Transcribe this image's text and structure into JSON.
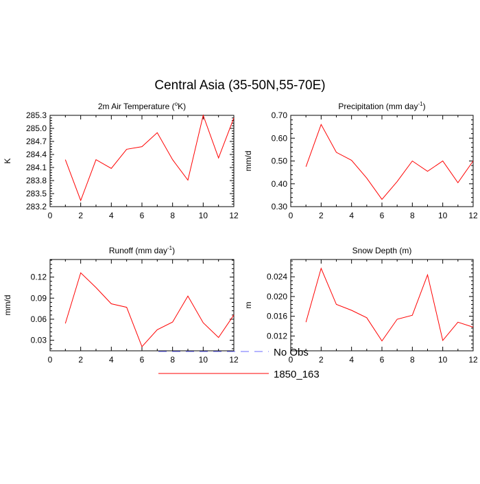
{
  "figure": {
    "title": "Central Asia (35-50N,55-70E)"
  },
  "legend": {
    "items": [
      {
        "label": "No Obs",
        "color": "#6a6aff",
        "dash": true
      },
      {
        "label": "1850_163",
        "color": "#ff0000",
        "dash": false
      }
    ]
  },
  "chart_data": [
    {
      "type": "line",
      "title": "2m Air Temperature (°K)",
      "ylabel": "K",
      "x": [
        1,
        2,
        3,
        4,
        5,
        6,
        7,
        8,
        9,
        10,
        11,
        12
      ],
      "xlim": [
        0,
        12
      ],
      "xticks": [
        0,
        2,
        4,
        6,
        8,
        10,
        12
      ],
      "ylim": [
        283.2,
        285.3
      ],
      "yticks": [
        "283.2",
        "283.5",
        "283.8",
        "284.1",
        "284.4",
        "284.7",
        "285.0",
        "285.3"
      ],
      "series": [
        {
          "name": "1850_163",
          "color": "#ff0000",
          "values": [
            284.28,
            283.34,
            284.28,
            284.08,
            284.52,
            284.58,
            284.9,
            284.28,
            283.81,
            285.3,
            284.32,
            285.24
          ]
        }
      ]
    },
    {
      "type": "line",
      "title": "Precipitation (mm day-1)",
      "ylabel": "mm/d",
      "x": [
        1,
        2,
        3,
        4,
        5,
        6,
        7,
        8,
        9,
        10,
        11,
        12
      ],
      "xlim": [
        0,
        12
      ],
      "xticks": [
        0,
        2,
        4,
        6,
        8,
        10,
        12
      ],
      "ylim": [
        0.3,
        0.7
      ],
      "yticks": [
        "0.30",
        "0.40",
        "0.50",
        "0.60",
        "0.70"
      ],
      "series": [
        {
          "name": "1850_163",
          "color": "#ff0000",
          "values": [
            0.475,
            0.66,
            0.538,
            0.503,
            0.425,
            0.332,
            0.41,
            0.5,
            0.455,
            0.5,
            0.405,
            0.5
          ]
        }
      ]
    },
    {
      "type": "line",
      "title": "Runoff (mm day-1)",
      "ylabel": "mm/d",
      "x": [
        1,
        2,
        3,
        4,
        5,
        6,
        7,
        8,
        9,
        10,
        11,
        12
      ],
      "xlim": [
        0,
        12
      ],
      "xticks": [
        0,
        2,
        4,
        6,
        8,
        10,
        12
      ],
      "ylim": [
        0.015,
        0.145
      ],
      "yticks": [
        "0.03",
        "0.06",
        "0.09",
        "0.12"
      ],
      "ytick_values": [
        0.03,
        0.06,
        0.09,
        0.12
      ],
      "series": [
        {
          "name": "1850_163",
          "color": "#ff0000",
          "values": [
            0.054,
            0.126,
            0.105,
            0.082,
            0.077,
            0.021,
            0.045,
            0.056,
            0.093,
            0.055,
            0.034,
            0.066
          ]
        }
      ]
    },
    {
      "type": "line",
      "title": "Snow Depth (m)",
      "ylabel": "m",
      "x": [
        1,
        2,
        3,
        4,
        5,
        6,
        7,
        8,
        9,
        10,
        11,
        12
      ],
      "xlim": [
        0,
        12
      ],
      "xticks": [
        0,
        2,
        4,
        6,
        8,
        10,
        12
      ],
      "ylim": [
        0.009,
        0.0275
      ],
      "yticks": [
        "0.012",
        "0.016",
        "0.020",
        "0.024"
      ],
      "ytick_values": [
        0.012,
        0.016,
        0.02,
        0.024
      ],
      "series": [
        {
          "name": "1850_163",
          "color": "#ff0000",
          "values": [
            0.0148,
            0.0257,
            0.0184,
            0.0172,
            0.0157,
            0.011,
            0.0154,
            0.0162,
            0.0244,
            0.0111,
            0.0148,
            0.0138
          ]
        }
      ]
    }
  ]
}
